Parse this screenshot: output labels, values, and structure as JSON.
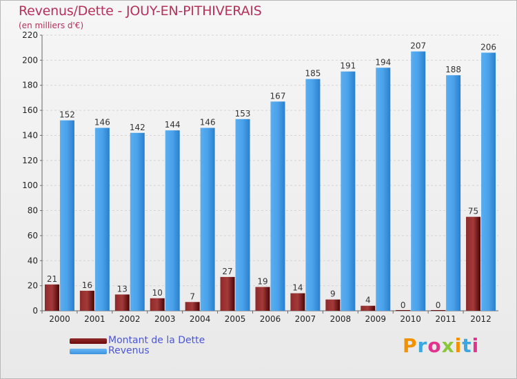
{
  "header": {
    "title": "Revenus/Dette - JOUY-EN-PITHIVERAIS",
    "subtitle": "(en milliers d'€)"
  },
  "logo": {
    "text": "Proxiti",
    "colors": [
      "#f39200",
      "#3aa7e0",
      "#e2338e",
      "#8cc63e",
      "#f39200",
      "#3aa7e0",
      "#e2338e"
    ]
  },
  "colors": {
    "dette": "#6e0a0a",
    "revenus": "#3a93df"
  },
  "chart_data": {
    "type": "bar",
    "categories": [
      "2000",
      "2001",
      "2002",
      "2003",
      "2004",
      "2005",
      "2006",
      "2007",
      "2008",
      "2009",
      "2010",
      "2011",
      "2012"
    ],
    "series": [
      {
        "name": "Montant de la Dette",
        "values": [
          21,
          16,
          13,
          10,
          7,
          27,
          19,
          14,
          9,
          4,
          0,
          0,
          75
        ]
      },
      {
        "name": "Revenus",
        "values": [
          152,
          146,
          142,
          144,
          146,
          153,
          167,
          185,
          191,
          194,
          207,
          188,
          206
        ]
      }
    ],
    "yticks": [
      0,
      20,
      40,
      60,
      80,
      100,
      120,
      140,
      160,
      180,
      200,
      220
    ],
    "ylim": [
      0,
      220
    ],
    "grid": true,
    "legend": "bottom-left"
  }
}
